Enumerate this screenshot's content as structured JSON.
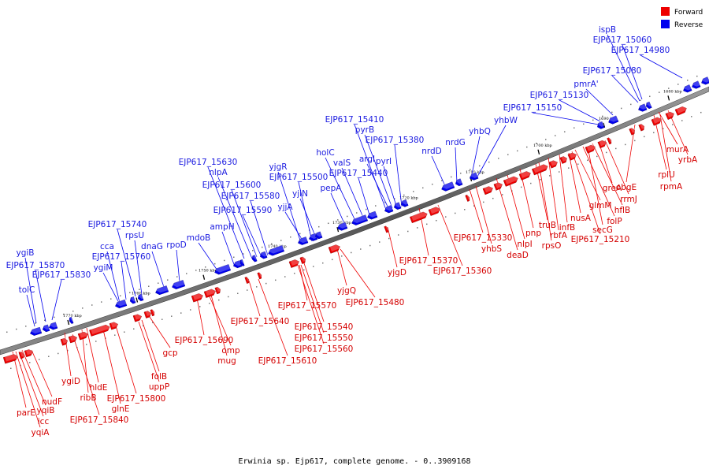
{
  "legend": {
    "forward_label": "Forward",
    "reverse_label": "Reverse",
    "forward_color": "#ee0000",
    "reverse_color": "#0000ee"
  },
  "caption": "Erwinia sp. Ejp617, complete genome. - 0..3909168",
  "ticks": [
    "1680 kbp",
    "1690 kbp",
    "1700 kbp",
    "1710 kbp",
    "1720 kbp",
    "1730 kbp",
    "1740 kbp",
    "1750 kbp",
    "1760 kbp",
    "1770 kbp"
  ],
  "reverse_labels": [
    "ispB",
    "EJP617_15060",
    "EJP617_14980",
    "EJP617_15080",
    "pmrA'",
    "EJP617_15130",
    "EJP617_15150",
    "yhbW",
    "yhbQ",
    "nrdG",
    "nrdD",
    "EJP617_15410",
    "pyrB",
    "EJP617_15380",
    "argI",
    "pyrI",
    "holC",
    "valS",
    "EJP617_15440",
    "pepA",
    "yjgR",
    "EJP617_15500",
    "yjiN",
    "yjjA",
    "EJP617_15630",
    "nlpA",
    "EJP617_15600",
    "EJP617_15580",
    "EJP617_15590",
    "ampH",
    "mdoB",
    "rpoD",
    "dnaG",
    "rpsU",
    "EJP617_15740",
    "cca",
    "EJP617_15760",
    "ygiM",
    "ygiB",
    "EJP617_15870",
    "EJP617_15830",
    "tolC"
  ],
  "forward_labels": [
    "murA",
    "yrbA",
    "rplU",
    "rpmA",
    "obgE",
    "greA",
    "rrmJ",
    "hflB",
    "folP",
    "glmM",
    "nusA",
    "secG",
    "EJP617_15210",
    "infB",
    "rbfA",
    "rpsO",
    "truB",
    "pnp",
    "nlpI",
    "deaD",
    "yhbS",
    "EJP617_15330",
    "EJP617_15370",
    "EJP617_15360",
    "yjgD",
    "yjgQ",
    "EJP617_15480",
    "EJP617_15570",
    "EJP617_15540",
    "EJP617_15550",
    "EJP617_15560",
    "EJP617_15640",
    "EJP617_15610",
    "EJP617_15690",
    "omp",
    "mug",
    "gcp",
    "folB",
    "uppP",
    "EJP617_15800",
    "glnE",
    "hldE",
    "ribB",
    "EJP617_15840",
    "ygiD",
    "nudF",
    "parE",
    "yqiB",
    "icc",
    "yqiA"
  ]
}
